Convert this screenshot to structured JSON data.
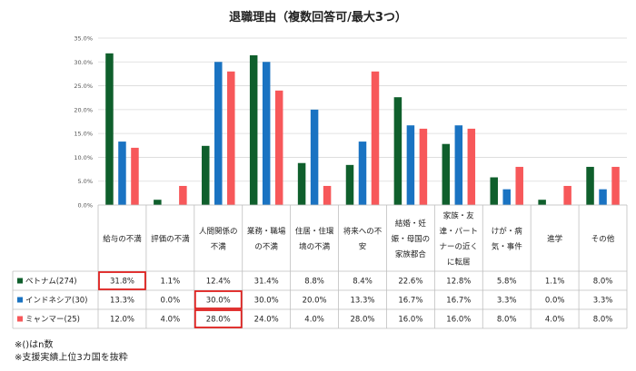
{
  "chart_data": {
    "type": "bar",
    "title": "退職理由（複数回答可/最大3つ）",
    "ylim": [
      0,
      35
    ],
    "yticks": [
      "0.0%",
      "5.0%",
      "10.0%",
      "15.0%",
      "20.0%",
      "25.0%",
      "30.0%",
      "35.0%"
    ],
    "grid": true,
    "legend": "table-left",
    "categories": [
      [
        "給与の不満"
      ],
      [
        "評価の不満"
      ],
      [
        "人間関係の",
        "不満"
      ],
      [
        "業務・職場",
        "の不満"
      ],
      [
        "住居・住環",
        "境の不満"
      ],
      [
        "将来への不",
        "安"
      ],
      [
        "結婚・妊",
        "娠・母国の",
        "家族都合"
      ],
      [
        "家族・友",
        "達・パート",
        "ナーの近く",
        "に転居"
      ],
      [
        "けが・病",
        "気・事件"
      ],
      [
        "進学"
      ],
      [
        "その他"
      ]
    ],
    "series": [
      {
        "name": "ベトナム(274)",
        "color": "#0f5f2c",
        "values": [
          31.8,
          1.1,
          12.4,
          31.4,
          8.8,
          8.4,
          22.6,
          12.8,
          5.8,
          1.1,
          8.0
        ],
        "labels": [
          "31.8%",
          "1.1%",
          "12.4%",
          "31.4%",
          "8.8%",
          "8.4%",
          "22.6%",
          "12.8%",
          "5.8%",
          "1.1%",
          "8.0%"
        ]
      },
      {
        "name": "インドネシア(30)",
        "color": "#1a73c2",
        "values": [
          13.3,
          0.0,
          30.0,
          30.0,
          20.0,
          13.3,
          16.7,
          16.7,
          3.3,
          0.0,
          3.3
        ],
        "labels": [
          "13.3%",
          "0.0%",
          "30.0%",
          "30.0%",
          "20.0%",
          "13.3%",
          "16.7%",
          "16.7%",
          "3.3%",
          "0.0%",
          "3.3%"
        ]
      },
      {
        "name": "ミャンマー(25)",
        "color": "#f7585a",
        "values": [
          12.0,
          4.0,
          28.0,
          24.0,
          4.0,
          28.0,
          16.0,
          16.0,
          8.0,
          4.0,
          8.0
        ],
        "labels": [
          "12.0%",
          "4.0%",
          "28.0%",
          "24.0%",
          "4.0%",
          "28.0%",
          "16.0%",
          "16.0%",
          "8.0%",
          "4.0%",
          "8.0%"
        ]
      }
    ],
    "highlighted_cells": [
      [
        0,
        0
      ],
      [
        1,
        2
      ],
      [
        2,
        2
      ]
    ],
    "highlight_color": "#e0201e"
  },
  "notes": [
    "※()はn数",
    "※支援実績上位3カ国を抜粋"
  ]
}
